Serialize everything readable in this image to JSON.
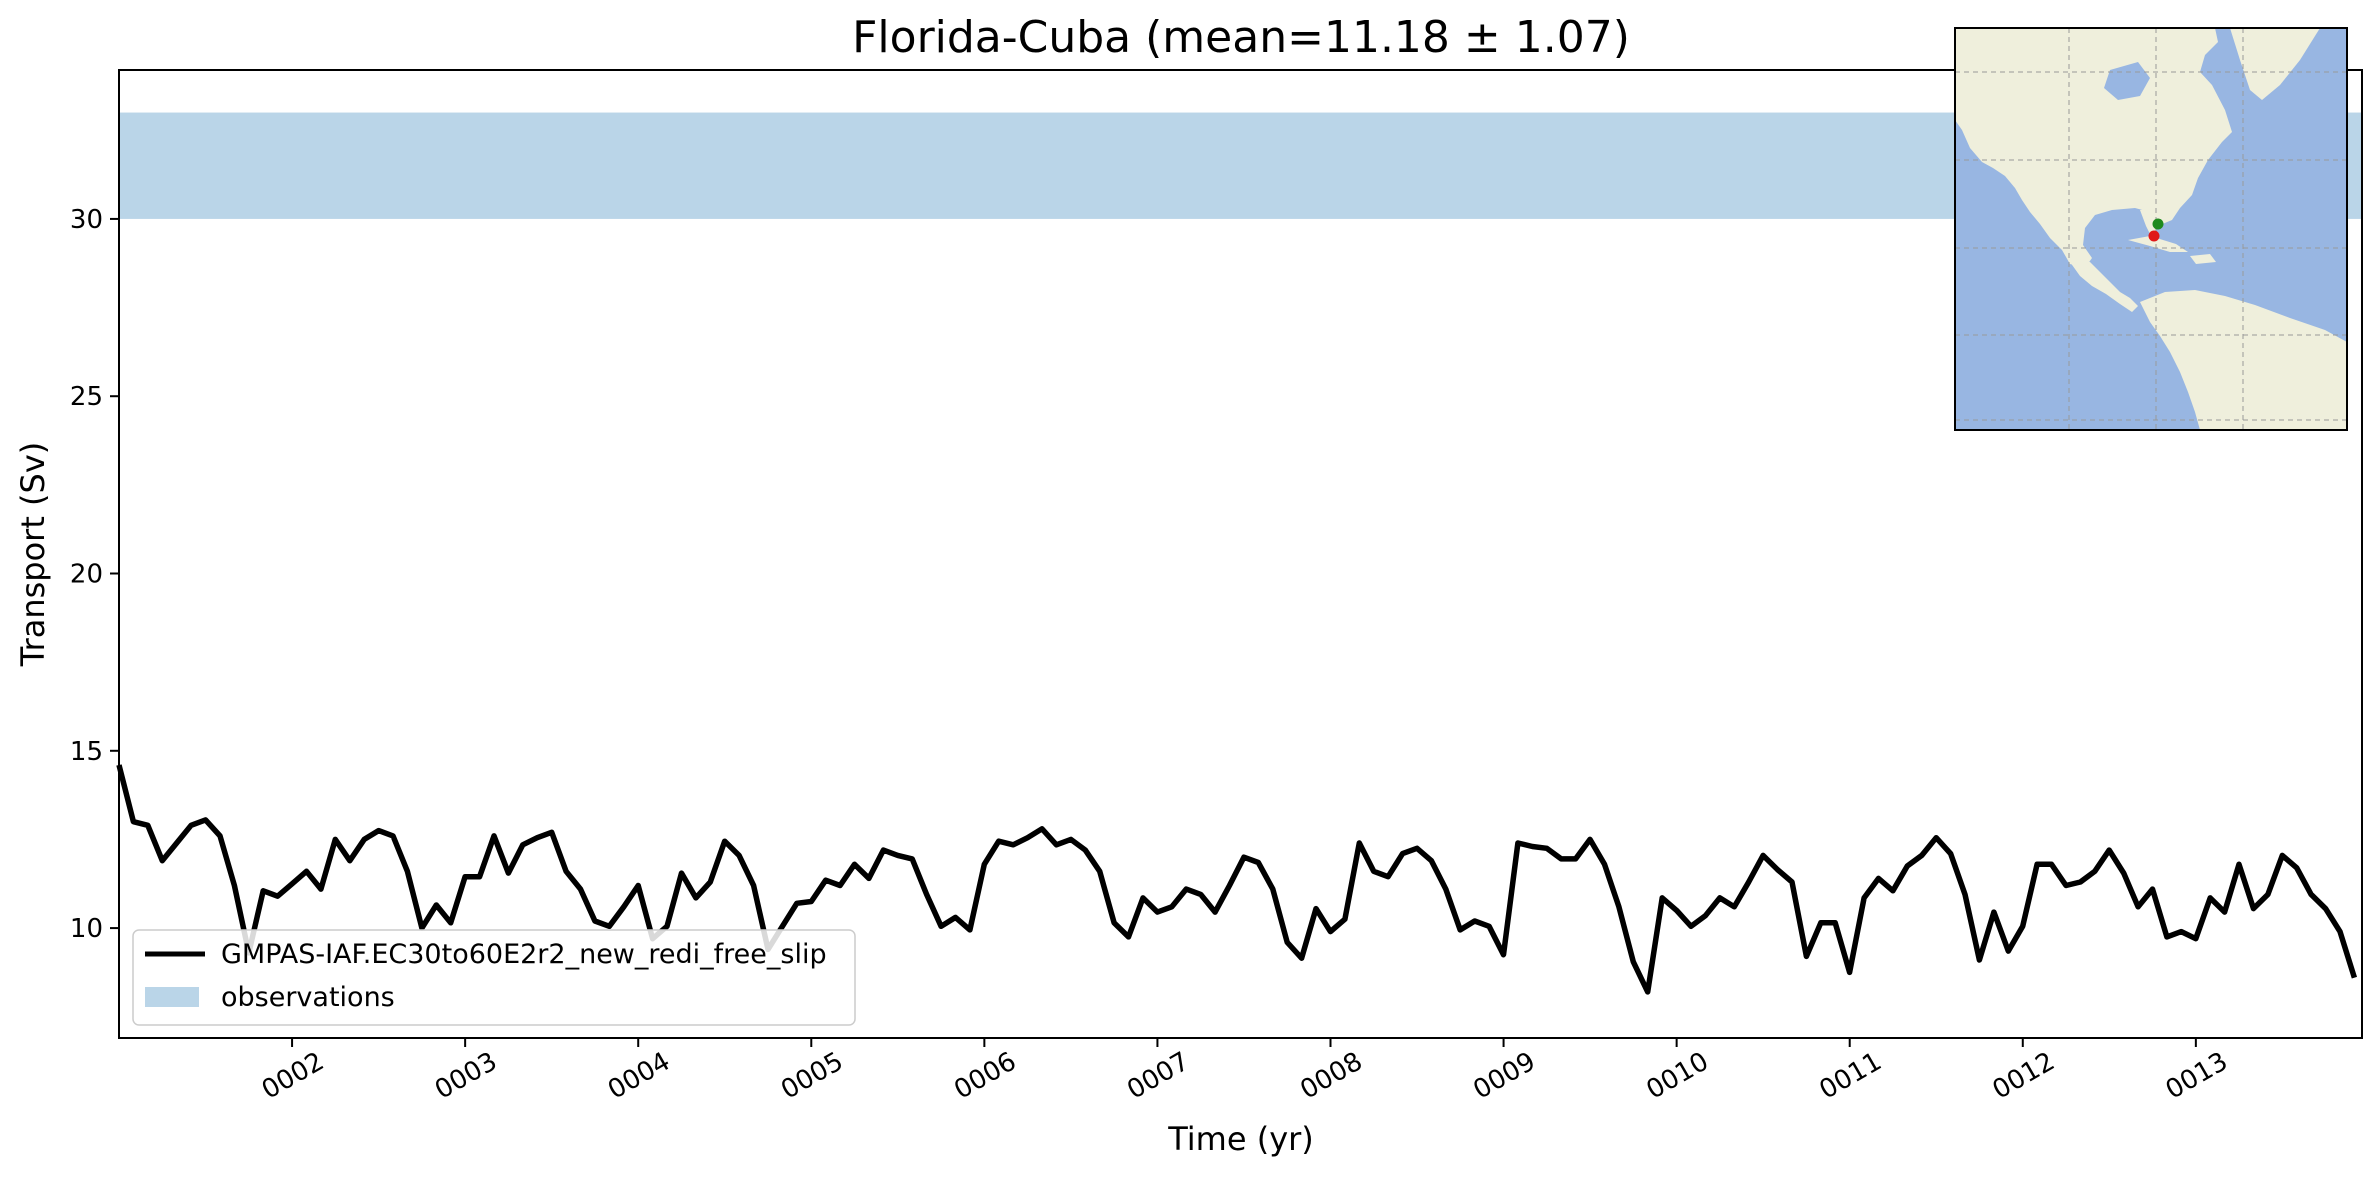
{
  "chart_data": {
    "type": "line",
    "title": "Florida-Cuba (mean=11.18 ± 1.07)",
    "xlabel": "Time (yr)",
    "ylabel": "Transport (Sv)",
    "xlim": [
      1.0,
      13.96
    ],
    "ylim": [
      6.9,
      34.2
    ],
    "x_ticks": [
      {
        "value": 2,
        "label": "0002"
      },
      {
        "value": 3,
        "label": "0003"
      },
      {
        "value": 4,
        "label": "0004"
      },
      {
        "value": 5,
        "label": "0005"
      },
      {
        "value": 6,
        "label": "0006"
      },
      {
        "value": 7,
        "label": "0007"
      },
      {
        "value": 8,
        "label": "0008"
      },
      {
        "value": 9,
        "label": "0009"
      },
      {
        "value": 10,
        "label": "0010"
      },
      {
        "value": 11,
        "label": "0011"
      },
      {
        "value": 12,
        "label": "0012"
      },
      {
        "value": 13,
        "label": "0013"
      }
    ],
    "y_ticks": [
      {
        "value": 10,
        "label": "10"
      },
      {
        "value": 15,
        "label": "15"
      },
      {
        "value": 20,
        "label": "20"
      },
      {
        "value": 25,
        "label": "25"
      },
      {
        "value": 30,
        "label": "30"
      }
    ],
    "grid": false,
    "legend_position": "lower-left",
    "series": [
      {
        "name": "GMPAS-IAF.EC30to60E2r2_new_redi_free_slip",
        "color": "#000000",
        "x_start": 1.0,
        "x_step": 0.08333,
        "values": [
          14.6,
          13.0,
          12.9,
          11.9,
          12.4,
          12.9,
          13.05,
          12.6,
          11.2,
          9.3,
          11.05,
          10.9,
          11.25,
          11.6,
          11.1,
          12.5,
          11.9,
          12.5,
          12.75,
          12.6,
          11.6,
          10.0,
          10.65,
          10.15,
          11.45,
          11.45,
          12.6,
          11.55,
          12.35,
          12.55,
          12.7,
          11.6,
          11.1,
          10.2,
          10.05,
          10.6,
          11.2,
          9.7,
          10.05,
          11.55,
          10.85,
          11.3,
          12.45,
          12.05,
          11.2,
          9.4,
          10.05,
          10.7,
          10.75,
          11.35,
          11.2,
          11.8,
          11.4,
          12.2,
          12.05,
          11.95,
          10.95,
          10.05,
          10.3,
          9.95,
          11.8,
          12.45,
          12.35,
          12.55,
          12.8,
          12.35,
          12.5,
          12.2,
          11.6,
          10.15,
          9.75,
          10.85,
          10.45,
          10.6,
          11.1,
          10.95,
          10.45,
          11.2,
          12.0,
          11.85,
          11.1,
          9.6,
          9.15,
          10.55,
          9.9,
          10.25,
          12.4,
          11.6,
          11.45,
          12.1,
          12.25,
          11.9,
          11.1,
          9.95,
          10.2,
          10.05,
          9.25,
          12.4,
          12.3,
          12.25,
          11.95,
          11.95,
          12.5,
          11.8,
          10.6,
          9.05,
          8.2,
          10.85,
          10.5,
          10.05,
          10.35,
          10.85,
          10.6,
          11.3,
          12.05,
          11.65,
          11.3,
          9.2,
          10.15,
          10.15,
          8.75,
          10.85,
          11.4,
          11.05,
          11.75,
          12.05,
          12.55,
          12.1,
          10.95,
          9.1,
          10.45,
          9.35,
          10.05,
          11.8,
          11.8,
          11.2,
          11.3,
          11.6,
          12.2,
          11.55,
          10.6,
          11.1,
          9.75,
          9.9,
          9.7,
          10.85,
          10.45,
          11.8,
          10.55,
          10.95,
          12.05,
          11.7,
          10.95,
          10.55,
          9.9,
          8.6
        ]
      },
      {
        "name": "observations",
        "type": "band",
        "color": "#bad5e8",
        "range": [
          30.0,
          33.0
        ]
      }
    ]
  },
  "inset_map": {
    "land_color": "#efefdc",
    "ocean_color": "#98b6e2",
    "grid_color": "#999999",
    "markers": [
      {
        "name": "start-point",
        "color": "#1e8a1e"
      },
      {
        "name": "end-point",
        "color": "#e01818"
      }
    ]
  }
}
